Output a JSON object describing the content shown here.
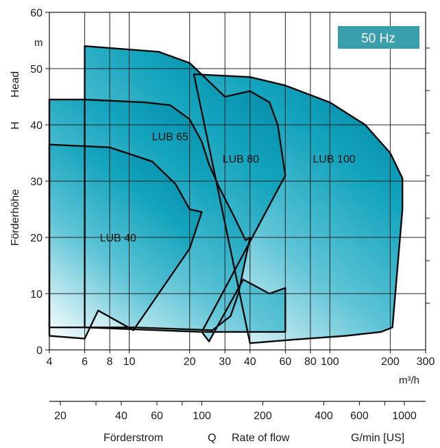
{
  "chart_data": {
    "type": "area",
    "frequency_badge": "50 Hz",
    "x_axis": {
      "scale": "log",
      "range": [
        4,
        300
      ],
      "ticks": [
        {
          "value": 4,
          "label": "4"
        },
        {
          "value": 6,
          "label": "6"
        },
        {
          "value": 8,
          "label": "8"
        },
        {
          "value": 10,
          "label": "10"
        },
        {
          "value": 20,
          "label": "20"
        },
        {
          "value": 30,
          "label": "30"
        },
        {
          "value": 40,
          "label": "40"
        },
        {
          "value": 60,
          "label": "60"
        },
        {
          "value": 80,
          "label": "80"
        },
        {
          "value": 100,
          "label": "100"
        },
        {
          "value": 200,
          "label": "200"
        },
        {
          "value": 300,
          "label": "300"
        }
      ],
      "unit": "m³/h"
    },
    "y_axis": {
      "scale": "linear",
      "range": [
        0,
        60
      ],
      "ticks": [
        0,
        10,
        20,
        30,
        40,
        50,
        60
      ],
      "unit": "m",
      "label_words": [
        "Förderhöhe",
        "H",
        "Head"
      ]
    },
    "secondary_x_axis": {
      "scale": "log",
      "unit_label": "G/min [US]",
      "labels": [
        {
          "value": 20,
          "label": "20"
        },
        {
          "value": 40,
          "label": "40"
        },
        {
          "value": 60,
          "label": "60"
        },
        {
          "value": 100,
          "label": "100"
        },
        {
          "value": 200,
          "label": "200"
        },
        {
          "value": 400,
          "label": "400"
        },
        {
          "value": 600,
          "label": "600"
        },
        {
          "value": 1000,
          "label": "1000"
        }
      ],
      "minor_ticks": [
        30,
        80,
        800
      ]
    },
    "flow_title": {
      "de": "Förderstrom",
      "symbol": "Q",
      "en": "Rate of flow"
    },
    "grid": true,
    "series": [
      {
        "name": "LUB 100",
        "label_at": [
          105,
          34
        ],
        "points": [
          [
            40,
            1.2
          ],
          [
            65,
            1.8
          ],
          [
            120,
            2.5
          ],
          [
            180,
            3.2
          ],
          [
            205,
            4
          ],
          [
            230,
            25
          ],
          [
            230,
            30.5
          ],
          [
            200,
            35
          ],
          [
            150,
            40
          ],
          [
            100,
            44
          ],
          [
            60,
            47
          ],
          [
            40,
            48.5
          ],
          [
            21,
            49
          ],
          [
            40,
            1.2
          ]
        ]
      },
      {
        "name": "LUB 80",
        "label_at": [
          36,
          34
        ],
        "points": [
          [
            23,
            3.2
          ],
          [
            60,
            3.2
          ],
          [
            60,
            11
          ],
          [
            50,
            10
          ],
          [
            37,
            12.5
          ],
          [
            25,
            1.5
          ],
          [
            23,
            3.2
          ],
          [
            60,
            31
          ],
          [
            55,
            40
          ],
          [
            50,
            44
          ],
          [
            40,
            46
          ],
          [
            30,
            45
          ],
          [
            20,
            51
          ],
          [
            14,
            53
          ],
          [
            6,
            54
          ],
          [
            6,
            44.5
          ],
          [
            6,
            4
          ],
          [
            23,
            3.2
          ]
        ]
      },
      {
        "name": "LUB 65",
        "label_at": [
          16,
          38
        ],
        "points": [
          [
            4,
            44.5
          ],
          [
            6,
            44.5
          ],
          [
            12,
            44
          ],
          [
            16,
            43.5
          ],
          [
            20,
            41
          ],
          [
            23,
            37
          ],
          [
            25,
            33
          ],
          [
            28,
            29
          ],
          [
            33,
            24
          ],
          [
            38,
            19.5
          ],
          [
            40,
            20
          ],
          [
            35,
            10
          ],
          [
            32,
            6
          ],
          [
            26,
            3.5
          ],
          [
            10.5,
            4
          ],
          [
            7,
            4
          ],
          [
            6,
            4
          ],
          [
            4,
            4
          ]
        ]
      },
      {
        "name": "LUB 40",
        "label_at": [
          8.8,
          20
        ],
        "points": [
          [
            4,
            36.5
          ],
          [
            8,
            36
          ],
          [
            13,
            33.5
          ],
          [
            17,
            29.5
          ],
          [
            20,
            25
          ],
          [
            23,
            24.5
          ],
          [
            20,
            18
          ],
          [
            10.5,
            3.5
          ],
          [
            7,
            7
          ],
          [
            6,
            2
          ],
          [
            4,
            2.5
          ]
        ]
      }
    ]
  }
}
